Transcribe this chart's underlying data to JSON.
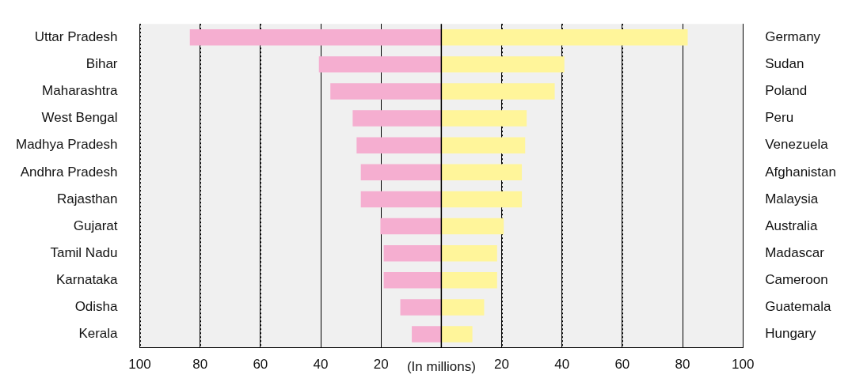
{
  "chart_data": {
    "type": "bar",
    "orientation": "horizontal",
    "stacked": true,
    "xlabel": "(In millions)",
    "categories": [
      "Uttar Pradesh",
      "Bihar",
      "Maharashtra",
      "West Bengal",
      "Madhya Pradesh",
      "Andhra Pradesh",
      "Rajasthan",
      "Gujarat",
      "Tamil Nadu",
      "Karnataka",
      "Odisha",
      "Kerala"
    ],
    "y2_categories": [
      "Germany",
      "Sudan",
      "Poland",
      "Peru",
      "Venezuela",
      "Afghanistan",
      "Malaysia",
      "Australia",
      "Madascar",
      "Cameroon",
      "Guatemala",
      "Hungary"
    ],
    "series": [
      {
        "color": "#f5aed0",
        "values": [
          -83.4,
          -40.6,
          -36.8,
          -29.4,
          -28.1,
          -26.7,
          -26.7,
          -20.2,
          -19.1,
          -19.1,
          -13.6,
          -9.8
        ]
      },
      {
        "color": "#fff59a",
        "values": [
          81.7,
          40.8,
          37.6,
          28.3,
          27.8,
          26.7,
          26.7,
          20.7,
          18.5,
          18.5,
          14.2,
          10.3
        ]
      }
    ],
    "xlim": [
      -100,
      100
    ],
    "xticks": [
      {
        "value": -100,
        "label": "100"
      },
      {
        "value": -80,
        "label": "80"
      },
      {
        "value": -60,
        "label": "60"
      },
      {
        "value": -40,
        "label": "40"
      },
      {
        "value": -20,
        "label": "20"
      },
      20,
      40,
      60,
      80,
      100
    ],
    "ref_lines": [
      {
        "axis": "x",
        "value": 0,
        "color": "#000000"
      }
    ],
    "grid": "x",
    "legend": false
  }
}
